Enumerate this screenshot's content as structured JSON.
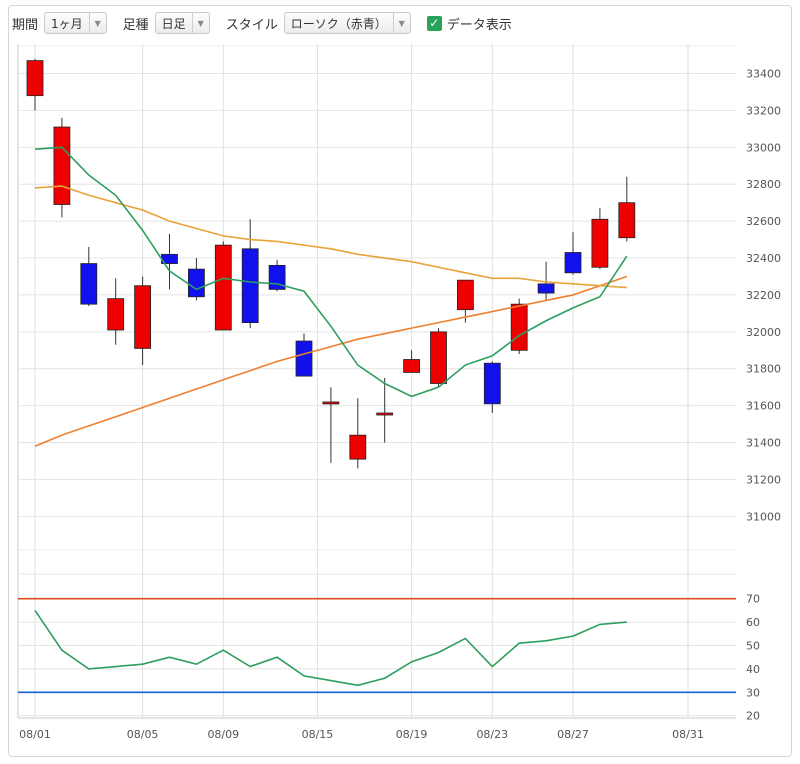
{
  "toolbar": {
    "period_label": "期間",
    "period_value": "1ヶ月",
    "interval_label": "足種",
    "interval_value": "日足",
    "style_label": "スタイル",
    "style_value": "ローソク（赤青）",
    "show_data_label": "データ表示",
    "show_data_checked": true
  },
  "colors": {
    "up": "#ee0000",
    "down": "#1111ee",
    "ma_short": "#2e9e5e",
    "ma_mid": "#e8a33a",
    "ma_long": "#ee8030",
    "rsi_upper": "#e24a1e",
    "rsi_lower": "#1a5fd0"
  },
  "chart_data": [
    {
      "type": "candlestick",
      "x_labels": [
        "08/01",
        "08/05",
        "08/09",
        "08/15",
        "08/19",
        "08/23",
        "08/27",
        "08/31"
      ],
      "y_ticks": [
        31000,
        31200,
        31400,
        31600,
        31800,
        32000,
        32200,
        32400,
        32600,
        32800,
        33000,
        33200,
        33400
      ],
      "ylim": [
        30720,
        33560
      ],
      "candles": [
        {
          "o": 33280,
          "h": 33480,
          "l": 33200,
          "c": 33470
        },
        {
          "o": 32690,
          "h": 33160,
          "l": 32620,
          "c": 33110
        },
        {
          "o": 32370,
          "h": 32460,
          "l": 32140,
          "c": 32150
        },
        {
          "o": 32010,
          "h": 32290,
          "l": 31930,
          "c": 32180
        },
        {
          "o": 31910,
          "h": 32300,
          "l": 31820,
          "c": 32250
        },
        {
          "o": 32420,
          "h": 32530,
          "l": 32230,
          "c": 32370
        },
        {
          "o": 32340,
          "h": 32400,
          "l": 32170,
          "c": 32190
        },
        {
          "o": 32010,
          "h": 32490,
          "l": 32010,
          "c": 32470
        },
        {
          "o": 32450,
          "h": 32610,
          "l": 32020,
          "c": 32050
        },
        {
          "o": 32360,
          "h": 32390,
          "l": 32220,
          "c": 32230
        },
        {
          "o": 31950,
          "h": 31990,
          "l": 31760,
          "c": 31760
        },
        {
          "o": 31620,
          "h": 31700,
          "l": 31290,
          "c": 31620
        },
        {
          "o": 31310,
          "h": 31640,
          "l": 31260,
          "c": 31440
        },
        {
          "o": 31550,
          "h": 31750,
          "l": 31400,
          "c": 31560
        },
        {
          "o": 31780,
          "h": 31900,
          "l": 31780,
          "c": 31850
        },
        {
          "o": 31720,
          "h": 32020,
          "l": 31700,
          "c": 32000
        },
        {
          "o": 32120,
          "h": 32280,
          "l": 32050,
          "c": 32280
        },
        {
          "o": 31830,
          "h": 31840,
          "l": 31560,
          "c": 31610
        },
        {
          "o": 31900,
          "h": 32180,
          "l": 31880,
          "c": 32150
        },
        {
          "o": 32260,
          "h": 32380,
          "l": 32170,
          "c": 32210
        },
        {
          "o": 32430,
          "h": 32540,
          "l": 32310,
          "c": 32320
        },
        {
          "o": 32350,
          "h": 32670,
          "l": 32340,
          "c": 32610
        },
        {
          "o": 32510,
          "h": 32840,
          "l": 32490,
          "c": 32700
        }
      ],
      "ma_short": [
        32990,
        33000,
        32850,
        32740,
        32550,
        32330,
        32230,
        32290,
        32270,
        32260,
        32220,
        32030,
        31820,
        31720,
        31650,
        31700,
        31820,
        31870,
        31980,
        32060,
        32130,
        32190,
        32410
      ],
      "ma_mid": [
        32780,
        32790,
        32740,
        32700,
        32660,
        32600,
        32560,
        32520,
        32500,
        32490,
        32470,
        32450,
        32420,
        32400,
        32380,
        32350,
        32320,
        32290,
        32290,
        32270,
        32260,
        32250,
        32240
      ],
      "ma_long": [
        31380,
        31440,
        31490,
        31540,
        31590,
        31640,
        31690,
        31740,
        31790,
        31840,
        31880,
        31920,
        31960,
        31990,
        32020,
        32050,
        32080,
        32110,
        32140,
        32170,
        32200,
        32250,
        32300
      ]
    },
    {
      "type": "line",
      "y_ticks": [
        20,
        30,
        40,
        50,
        60,
        70
      ],
      "ylim": [
        19,
        78
      ],
      "upper_line": 70,
      "lower_line": 30,
      "values": [
        65,
        48,
        40,
        41,
        42,
        45,
        42,
        48,
        41,
        45,
        37,
        35,
        33,
        36,
        43,
        47,
        53,
        41,
        51,
        52,
        54,
        59,
        60
      ]
    }
  ]
}
